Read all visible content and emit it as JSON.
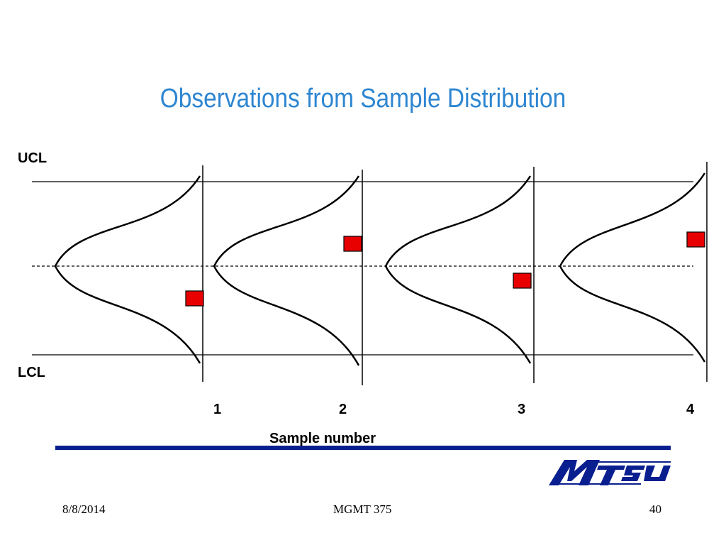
{
  "slide": {
    "title": "Observations from Sample Distribution"
  },
  "labels": {
    "ucl": "UCL",
    "lcl": "LCL",
    "x_axis": "Sample number"
  },
  "samples": [
    {
      "number": "1",
      "observation": "below-center"
    },
    {
      "number": "2",
      "observation": "above-center"
    },
    {
      "number": "3",
      "observation": "below-center"
    },
    {
      "number": "4",
      "observation": "above-center"
    }
  ],
  "colors": {
    "title": "#2e86d1",
    "marker": "#e80000",
    "rule": "#0a1f8f"
  },
  "logo": {
    "icon": "mtsu-logo"
  },
  "footer": {
    "date": "8/8/2014",
    "course": "MGMT 375",
    "page": "40"
  }
}
